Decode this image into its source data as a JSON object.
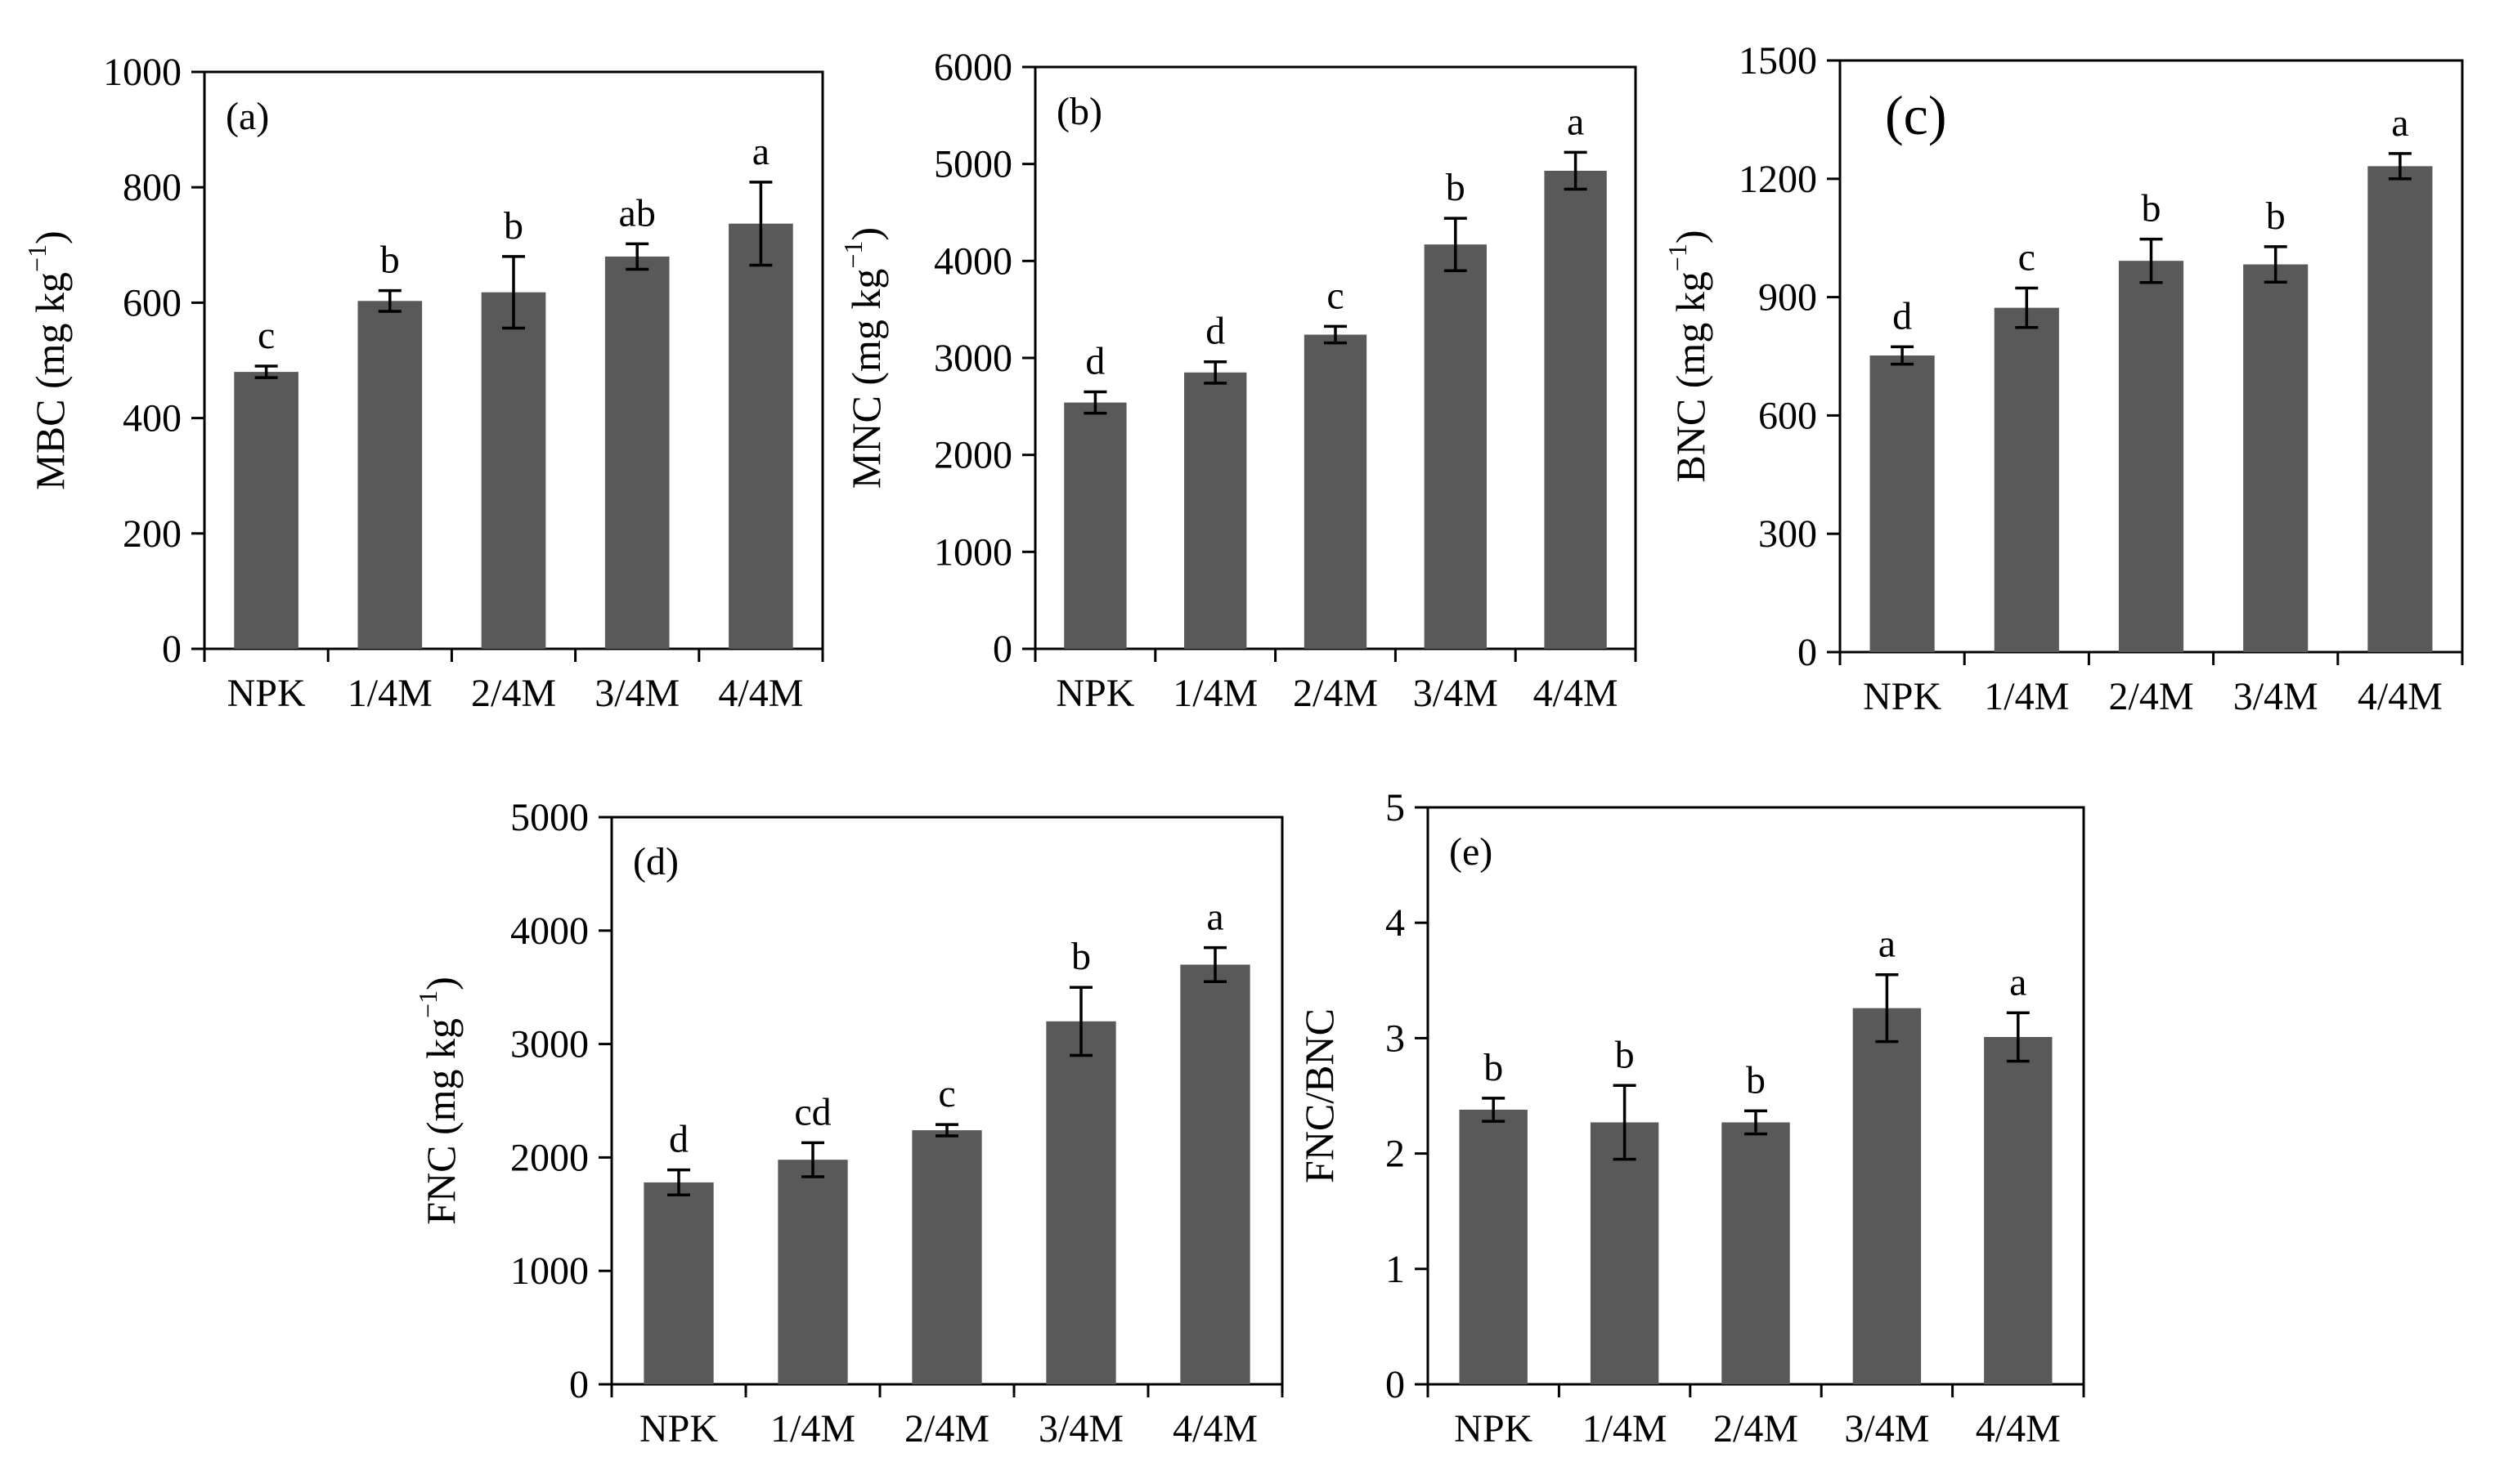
{
  "chart_data": [
    {
      "type": "bar",
      "panel_label": "(a)",
      "categories": [
        "NPK",
        "1/4M",
        "2/4M",
        "3/4M",
        "4/4M"
      ],
      "values": [
        480,
        603,
        618,
        680,
        737
      ],
      "errors": [
        10,
        18,
        62,
        22,
        72
      ],
      "significance": [
        "c",
        "b",
        "b",
        "ab",
        "a"
      ],
      "ylabel_main": "MBC (mg kg",
      "ylabel_sup": "−1",
      "ylabel_close": ")",
      "ylim": [
        0,
        1000
      ],
      "yticks": [
        "0",
        "200",
        "400",
        "600",
        "800",
        "1000"
      ],
      "bar_color": "#595959"
    },
    {
      "type": "bar",
      "panel_label": "(b)",
      "categories": [
        "NPK",
        "1/4M",
        "2/4M",
        "3/4M",
        "4/4M"
      ],
      "values": [
        2540,
        2850,
        3240,
        4170,
        4930
      ],
      "errors": [
        110,
        110,
        85,
        270,
        190
      ],
      "significance": [
        "d",
        "d",
        "c",
        "b",
        "a"
      ],
      "ylabel_main": "MNC (mg kg",
      "ylabel_sup": "−1",
      "ylabel_close": ")",
      "ylim": [
        0,
        6000
      ],
      "yticks": [
        "0",
        "1000",
        "2000",
        "3000",
        "4000",
        "5000",
        "6000"
      ],
      "bar_color": "#595959"
    },
    {
      "type": "bar",
      "panel_label": "(c)",
      "categories": [
        "NPK",
        "1/4M",
        "2/4M",
        "3/4M",
        "4/4M"
      ],
      "values": [
        752,
        873,
        992,
        983,
        1232
      ],
      "errors": [
        22,
        50,
        55,
        45,
        32
      ],
      "significance": [
        "d",
        "c",
        "b",
        "b",
        "a"
      ],
      "ylabel_main": "BNC (mg kg",
      "ylabel_sup": "−1",
      "ylabel_close": ")",
      "ylim": [
        0,
        1500
      ],
      "yticks": [
        "0",
        "300",
        "600",
        "900",
        "1200",
        "1500"
      ],
      "bar_color": "#595959"
    },
    {
      "type": "bar",
      "panel_label": "(d)",
      "categories": [
        "NPK",
        "1/4M",
        "2/4M",
        "3/4M",
        "4/4M"
      ],
      "values": [
        1780,
        1980,
        2240,
        3200,
        3700
      ],
      "errors": [
        110,
        150,
        50,
        300,
        150
      ],
      "significance": [
        "d",
        "cd",
        "c",
        "b",
        "a"
      ],
      "ylabel_main": "FNC (mg kg",
      "ylabel_sup": "−1",
      "ylabel_close": ")",
      "ylim": [
        0,
        5000
      ],
      "yticks": [
        "0",
        "1000",
        "2000",
        "3000",
        "4000",
        "5000"
      ],
      "bar_color": "#595959"
    },
    {
      "type": "bar",
      "panel_label": "(e)",
      "categories": [
        "NPK",
        "1/4M",
        "2/4M",
        "3/4M",
        "4/4M"
      ],
      "values": [
        2.38,
        2.27,
        2.27,
        3.26,
        3.01
      ],
      "errors": [
        0.1,
        0.32,
        0.1,
        0.29,
        0.21
      ],
      "significance": [
        "b",
        "b",
        "b",
        "a",
        "a"
      ],
      "ylabel_main": "FNC/BNC",
      "ylabel_sup": "",
      "ylabel_close": "",
      "ylim": [
        0,
        5
      ],
      "yticks": [
        "0",
        "1",
        "2",
        "3",
        "4",
        "5"
      ],
      "bar_color": "#595959"
    }
  ]
}
